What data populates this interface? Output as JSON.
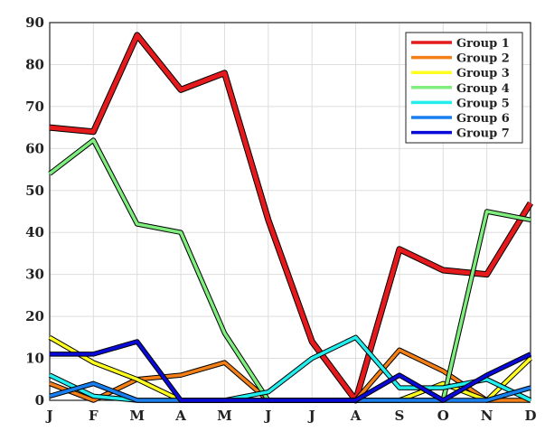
{
  "chart_data": {
    "type": "line",
    "categories": [
      "J",
      "F",
      "M",
      "A",
      "M",
      "J",
      "J",
      "A",
      "S",
      "O",
      "N",
      "D"
    ],
    "ylim": [
      0,
      90
    ],
    "yticks": [
      0,
      10,
      20,
      30,
      40,
      50,
      60,
      70,
      80,
      90
    ],
    "grid": true,
    "legend_position": "top-right",
    "series": [
      {
        "name": "Group 1",
        "color": "#e41a1c",
        "values": [
          65,
          64,
          87,
          74,
          78,
          43,
          14,
          0,
          36,
          31,
          30,
          47
        ]
      },
      {
        "name": "Group 2",
        "color": "#f57f17",
        "values": [
          4,
          0,
          5,
          6,
          9,
          0,
          0,
          0,
          12,
          7,
          0,
          0
        ]
      },
      {
        "name": "Group 3",
        "color": "#ffff1f",
        "values": [
          15,
          9,
          5,
          0,
          0,
          0,
          0,
          0,
          0,
          4,
          0,
          10
        ]
      },
      {
        "name": "Group 4",
        "color": "#7fee7f",
        "values": [
          54,
          62,
          42,
          40,
          16,
          0,
          0,
          0,
          0,
          0,
          45,
          43
        ]
      },
      {
        "name": "Group 5",
        "color": "#22eeee",
        "values": [
          6,
          1,
          0,
          0,
          0,
          2,
          10,
          15,
          3,
          3,
          5,
          0
        ]
      },
      {
        "name": "Group 6",
        "color": "#1a7fee",
        "values": [
          1,
          4,
          0,
          0,
          0,
          0,
          0,
          0,
          0,
          0,
          0,
          3
        ]
      },
      {
        "name": "Group 7",
        "color": "#0a0ad8",
        "values": [
          11,
          11,
          14,
          0,
          0,
          0,
          0,
          0,
          6,
          0,
          6,
          11
        ]
      }
    ]
  }
}
